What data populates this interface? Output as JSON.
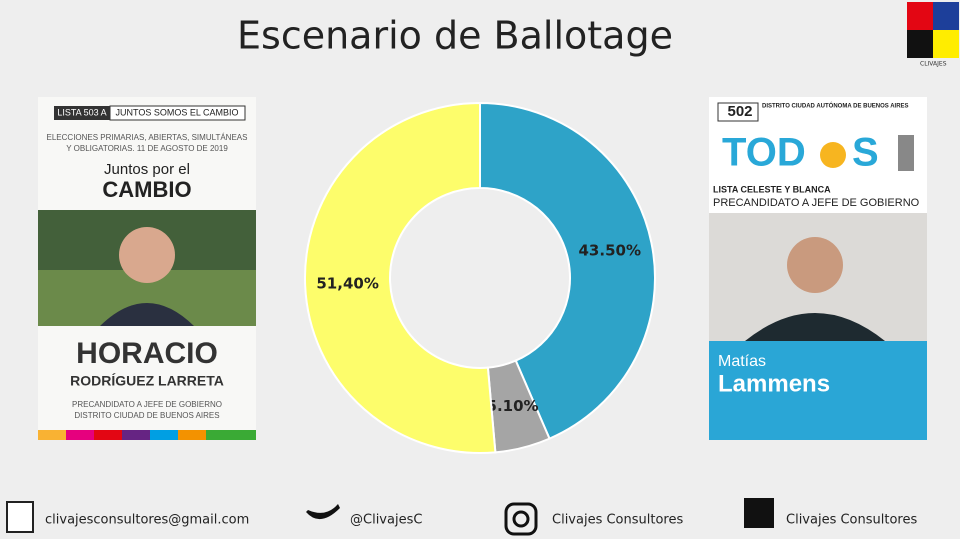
{
  "chart_data": {
    "type": "donut",
    "title": "Escenario de Ballotage",
    "categories": [
      null,
      null,
      null
    ],
    "values": [
      43.5,
      5.1,
      51.4
    ],
    "value_labels": [
      "43.50%",
      "5.10%",
      "51,40%"
    ],
    "colors": [
      "#2ea3c8",
      "#a5a5a5",
      "#fdfd6b"
    ]
  },
  "left_ballot": {
    "list": "LISTA 503 A",
    "alliance": "JUNTOS SOMOS EL CAMBIO",
    "election_1": "ELECCIONES PRIMARIAS, ABIERTAS, SIMULTÁNEAS",
    "election_2": "Y OBLIGATORIAS. 11 DE AGOSTO DE 2019",
    "party_1": "Juntos por el",
    "party_2": "CAMBIO",
    "name_1": "HORACIO",
    "name_2": "RODRÍGUEZ LARRETA",
    "role": "PRECANDIDATO A JEFE DE GOBIERNO",
    "district": "DISTRITO CIUDAD DE BUENOS AIRES"
  },
  "right_ballot": {
    "number": "502",
    "district": "DISTRITO CIUDAD AUTÓNOMA DE BUENOS AIRES",
    "party_a": "TOD",
    "party_b": "S",
    "list": "LISTA CELESTE Y BLANCA",
    "role": "PRECANDIDATO A JEFE DE GOBIERNO",
    "name_1": "Matías",
    "name_2": "Lammens"
  },
  "logo": "CLIVAJES",
  "footer": {
    "email": "clivajesconsultores@gmail.com",
    "twitter": "@ClivajesC",
    "instagram": "Clivajes Consultores",
    "facebook": "Clivajes Consultores"
  }
}
